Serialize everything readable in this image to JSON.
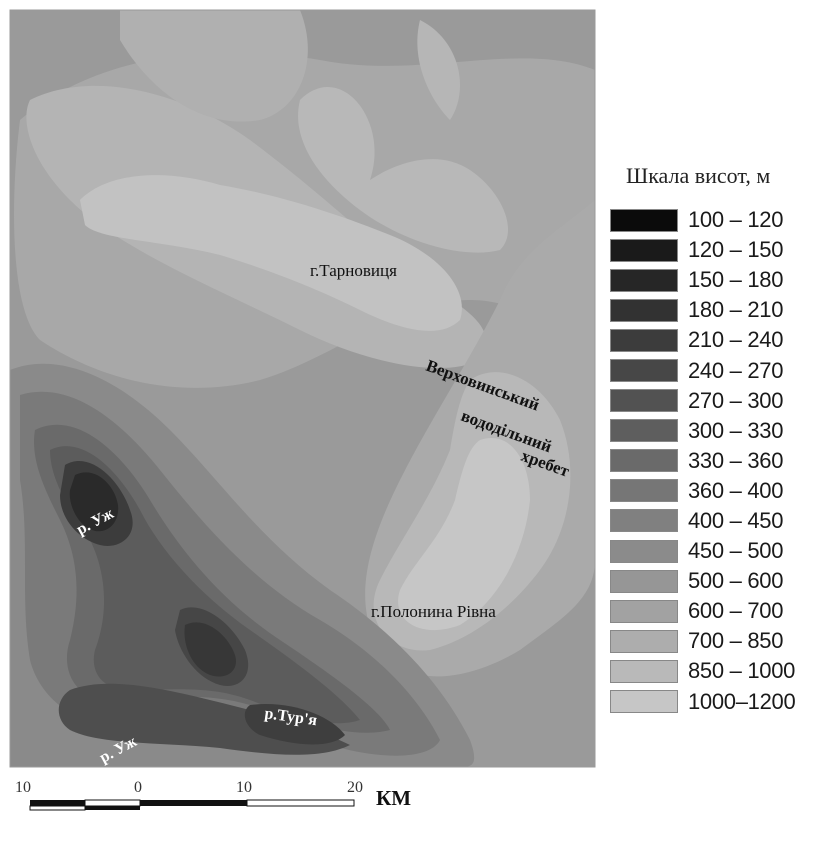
{
  "map": {
    "labels": {
      "tarnovytsia": "г.Тарновиця",
      "polonyna": "г.Полонина Рівна",
      "river_uzh_1": "р. Уж",
      "river_uzh_2": "р. Уж",
      "river_turia": "р.Тур'я"
    },
    "ridge_label_lines": [
      "Верховинський",
      "вододільний",
      "хребет"
    ]
  },
  "legend": {
    "title": "Шкала висот, м",
    "items": [
      {
        "range": "100 – 120",
        "color": "#0b0b0b"
      },
      {
        "range": "120 – 150",
        "color": "#1a1a1a"
      },
      {
        "range": "150 – 180",
        "color": "#262626"
      },
      {
        "range": "180 – 210",
        "color": "#323232"
      },
      {
        "range": "210 – 240",
        "color": "#3c3c3c"
      },
      {
        "range": "240 – 270",
        "color": "#474747"
      },
      {
        "range": "270 – 300",
        "color": "#525252"
      },
      {
        "range": "300 – 330",
        "color": "#5e5e5e"
      },
      {
        "range": "330 – 360",
        "color": "#6a6a6a"
      },
      {
        "range": "360 – 400",
        "color": "#767676"
      },
      {
        "range": "400 – 450",
        "color": "#808080"
      },
      {
        "range": "450 – 500",
        "color": "#8b8b8b"
      },
      {
        "range": "500 – 600",
        "color": "#969696"
      },
      {
        "range": "600 – 700",
        "color": "#a2a2a2"
      },
      {
        "range": "700 – 850",
        "color": "#adadad"
      },
      {
        "range": "850 – 1000",
        "color": "#b9b9b9"
      },
      {
        "range": "1000–1200",
        "color": "#c6c6c6"
      }
    ]
  },
  "scale_bar": {
    "ticks": [
      "10",
      "0",
      "10",
      "20"
    ],
    "unit": "КМ"
  }
}
